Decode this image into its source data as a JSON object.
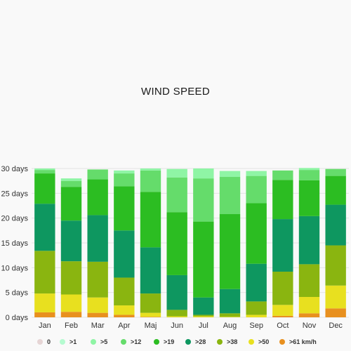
{
  "chart_data": {
    "type": "bar",
    "stacked": true,
    "title": "WIND SPEED",
    "categories": [
      "Jan",
      "Feb",
      "Mar",
      "Apr",
      "Maj",
      "Jun",
      "Jul",
      "Aug",
      "Sep",
      "Oct",
      "Nov",
      "Dec"
    ],
    "yticks": [
      "0 days",
      "5 days",
      "10 days",
      "15 days",
      "20 days",
      "25 days",
      "30 days"
    ],
    "ylim": [
      0,
      30
    ],
    "grid": true,
    "legend_position": "bottom",
    "series": [
      {
        "name": "0",
        "color": "#e6d5d5",
        "values": [
          0,
          0,
          0,
          0,
          0,
          0,
          0,
          0,
          0,
          0,
          0,
          0
        ]
      },
      {
        "name": ">61 km/h",
        "color": "#e8901f",
        "values": [
          1.0,
          1.1,
          0.9,
          0.5,
          0.1,
          0,
          0,
          0,
          0,
          0.3,
          0.8,
          1.8
        ]
      },
      {
        "name": ">50",
        "color": "#e8e01f",
        "values": [
          3.8,
          3.5,
          3.1,
          1.9,
          0.8,
          0.2,
          0.2,
          0.1,
          0.5,
          2.2,
          3.3,
          4.6
        ]
      },
      {
        "name": ">38",
        "color": "#8ab510",
        "values": [
          8.6,
          6.7,
          7.2,
          5.6,
          3.9,
          1.3,
          0.3,
          0.7,
          2.7,
          6.7,
          6.6,
          8.1
        ]
      },
      {
        "name": ">28",
        "color": "#0e9760",
        "values": [
          9.5,
          8.2,
          9.4,
          9.5,
          9.3,
          7.0,
          3.5,
          4.9,
          7.6,
          10.6,
          9.7,
          8.2
        ]
      },
      {
        "name": ">19",
        "color": "#2cbd22",
        "values": [
          6.1,
          6.8,
          7.2,
          8.9,
          11.2,
          12.7,
          15.3,
          15.1,
          12.2,
          7.9,
          7.2,
          5.8
        ]
      },
      {
        "name": ">12",
        "color": "#65dc6b",
        "values": [
          0.7,
          1.2,
          2.0,
          2.6,
          4.3,
          7.0,
          8.7,
          7.5,
          5.5,
          1.9,
          2.1,
          1.4
        ]
      },
      {
        "name": ">5",
        "color": "#8ff5a5",
        "values": [
          0.3,
          0.5,
          0,
          0.6,
          0.4,
          1.7,
          2.0,
          1.2,
          1.0,
          0,
          0.4,
          0
        ]
      },
      {
        "name": ">1",
        "color": "#b5fbd0",
        "values": [
          0,
          0,
          0,
          0,
          0,
          0,
          0,
          0,
          0,
          0,
          0,
          0
        ]
      }
    ],
    "legend": [
      "0",
      ">1",
      ">5",
      ">12",
      ">19",
      ">28",
      ">38",
      ">50",
      ">61 km/h"
    ]
  }
}
